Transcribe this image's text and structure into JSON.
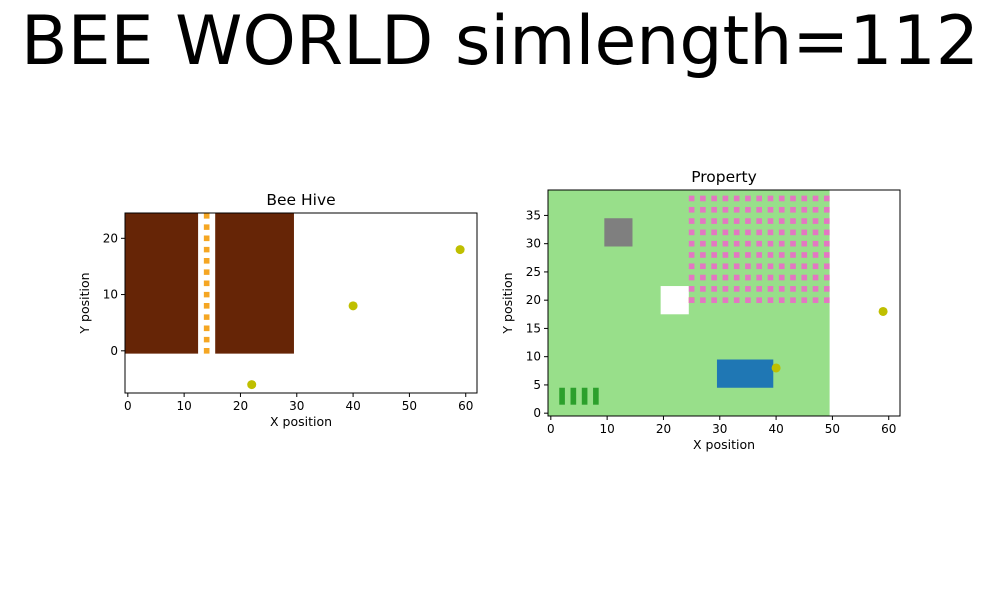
{
  "figure": {
    "suptitle": "BEE WORLD simlength=112"
  },
  "chart_data": [
    {
      "type": "scatter",
      "title": "Bee Hive",
      "xlabel": "X position",
      "ylabel": "Y position",
      "xlim": [
        -0.5,
        62
      ],
      "ylim": [
        -7.5,
        24.5
      ],
      "xticks": [
        0,
        10,
        20,
        30,
        40,
        50,
        60
      ],
      "yticks": [
        0,
        10,
        20
      ],
      "regions": [
        {
          "kind": "hive-comb",
          "x": [
            -0.5,
            12.5
          ],
          "y": [
            -0.5,
            24.5
          ],
          "color": "#662506"
        },
        {
          "kind": "hive-comb",
          "x": [
            15.5,
            29.5
          ],
          "y": [
            -0.5,
            24.5
          ],
          "color": "#662506"
        },
        {
          "kind": "hive-gap",
          "x": [
            12.5,
            15.5
          ],
          "y": [
            -0.5,
            24.5
          ],
          "color": "#ffffff"
        }
      ],
      "cell_columns": [
        {
          "x": 14,
          "y_start": 0,
          "y_end": 24,
          "y_step": 1,
          "color": "#f5a623",
          "alt_color": "#ffffff"
        }
      ],
      "points": [
        {
          "x": 22,
          "y": -6,
          "color": "#bfbf00"
        },
        {
          "x": 40,
          "y": 8,
          "color": "#bfbf00"
        },
        {
          "x": 59,
          "y": 18,
          "color": "#bfbf00"
        }
      ]
    },
    {
      "type": "scatter",
      "title": "Property",
      "xlabel": "X position",
      "ylabel": "Y position",
      "xlim": [
        -0.5,
        62
      ],
      "ylim": [
        -0.5,
        39.5
      ],
      "xticks": [
        0,
        10,
        20,
        30,
        40,
        50,
        60
      ],
      "yticks": [
        0,
        5,
        10,
        15,
        20,
        25,
        30,
        35
      ],
      "regions": [
        {
          "kind": "grass",
          "x": [
            -0.5,
            49.5
          ],
          "y": [
            -0.5,
            39.5
          ],
          "color": "#98df8a"
        },
        {
          "kind": "rock",
          "x": [
            9.5,
            14.5
          ],
          "y": [
            29.5,
            34.5
          ],
          "color": "#7f7f7f"
        },
        {
          "kind": "empty",
          "x": [
            19.5,
            24.5
          ],
          "y": [
            17.5,
            22.5
          ],
          "color": "#ffffff"
        },
        {
          "kind": "pond",
          "x": [
            29.5,
            39.5
          ],
          "y": [
            4.5,
            9.5
          ],
          "color": "#1f77b4"
        },
        {
          "kind": "hive-marker",
          "x": [
            24.5,
            25.5
          ],
          "y": [
            19.5,
            20.5
          ],
          "color": "#ff7f0e"
        }
      ],
      "flower_field": {
        "x_start": 25,
        "x_end": 49,
        "x_step": 2,
        "y_start": 20,
        "y_end": 38,
        "y_step": 2,
        "color": "#e377c2"
      },
      "plant_rows": [
        {
          "x": 2,
          "y": [
            2,
            4
          ],
          "color": "#2ca02c"
        },
        {
          "x": 4,
          "y": [
            2,
            4
          ],
          "color": "#2ca02c"
        },
        {
          "x": 6,
          "y": [
            2,
            4
          ],
          "color": "#2ca02c"
        },
        {
          "x": 8,
          "y": [
            2,
            4
          ],
          "color": "#2ca02c"
        }
      ],
      "points": [
        {
          "x": 40,
          "y": 8,
          "color": "#bfbf00"
        },
        {
          "x": 59,
          "y": 18,
          "color": "#bfbf00"
        }
      ]
    }
  ]
}
